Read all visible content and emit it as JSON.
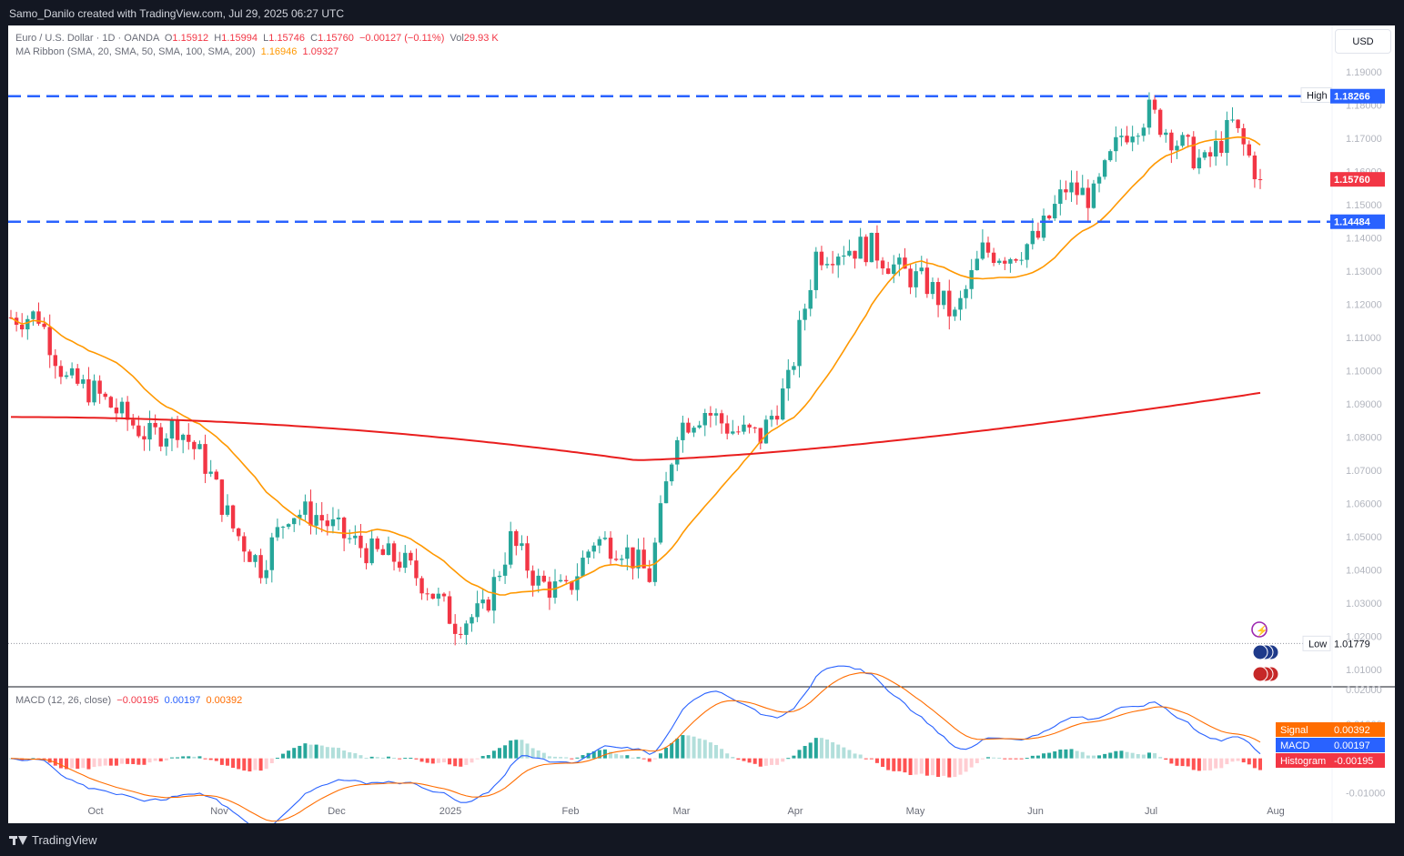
{
  "header": {
    "attribution": "Samo_Danilo created with TradingView.com, Jul 29, 2025 06:27 UTC"
  },
  "footer": {
    "brand": "TradingView"
  },
  "symbol": {
    "name": "Euro / U.S. Dollar · 1D · OANDA",
    "open_label": "O",
    "open": "1.15912",
    "high_label": "H",
    "high": "1.15994",
    "low_label": "L",
    "low": "1.15746",
    "close_label": "C",
    "close": "1.15760",
    "change": "−0.00127 (−0.11%)",
    "vol_label": "Vol",
    "vol": "29.93 K"
  },
  "ma_ribbon": {
    "name": "MA Ribbon (SMA, 20, SMA, 50, SMA, 100, SMA, 200)",
    "ma20": "1.16946",
    "ma200": "1.09327"
  },
  "currency_button": "USD",
  "price_scale": {
    "ticks": [
      "1.19000",
      "1.18000",
      "1.17000",
      "1.16000",
      "1.15000",
      "1.14000",
      "1.13000",
      "1.12000",
      "1.11000",
      "1.10000",
      "1.09000",
      "1.08000",
      "1.07000",
      "1.06000",
      "1.05000",
      "1.04000",
      "1.03000",
      "1.02000",
      "1.01000"
    ]
  },
  "markers": {
    "high_label": "High",
    "high_value": "1.18299",
    "low_label": "Low",
    "low_value": "1.01779",
    "level_upper": "1.18266",
    "level_lower": "1.14484",
    "last_price": "1.15760"
  },
  "macd": {
    "name": "MACD (12, 26, close)",
    "hist": "−0.00195",
    "macd": "0.00197",
    "signal": "0.00392",
    "ticks": [
      "0.02000",
      "0.01000",
      "0.00000",
      "-0.01000"
    ],
    "signal_label": "Signal",
    "macd_label": "MACD",
    "histogram_label": "Histogram",
    "histogram_value": "-0.00195"
  },
  "time_axis": [
    "Oct",
    "Nov",
    "Dec",
    "2025",
    "Feb",
    "Mar",
    "Apr",
    "May",
    "Jun",
    "Jul",
    "Aug"
  ],
  "colors": {
    "up": "#26a69a",
    "down": "#f23645",
    "ma20": "#ff9800",
    "ma200": "#e91e1e",
    "level": "#2962ff",
    "macd": "#2962ff",
    "signal": "#ff6d00"
  },
  "chart_data": {
    "type": "candlestick",
    "symbol": "EUR/USD",
    "timeframe": "1D",
    "x": [
      "2024-09-16",
      "2024-09-23",
      "2024-09-30",
      "2024-10-07",
      "2024-10-14",
      "2024-10-21",
      "2024-10-28",
      "2024-11-04",
      "2024-11-11",
      "2024-11-18",
      "2024-11-25",
      "2024-12-02",
      "2024-12-09",
      "2024-12-16",
      "2024-12-23",
      "2024-12-30",
      "2025-01-06",
      "2025-01-13",
      "2025-01-20",
      "2025-01-27",
      "2025-02-03",
      "2025-02-10",
      "2025-02-17",
      "2025-02-24",
      "2025-03-03",
      "2025-03-10",
      "2025-03-17",
      "2025-03-24",
      "2025-03-31",
      "2025-04-07",
      "2025-04-14",
      "2025-04-21",
      "2025-04-28",
      "2025-05-05",
      "2025-05-12",
      "2025-05-19",
      "2025-05-26",
      "2025-06-02",
      "2025-06-09",
      "2025-06-16",
      "2025-06-23",
      "2025-06-30",
      "2025-07-07",
      "2025-07-14",
      "2025-07-21",
      "2025-07-28"
    ],
    "close": [
      1.116,
      1.1165,
      1.097,
      1.0935,
      1.0865,
      1.08,
      1.0835,
      1.072,
      1.0525,
      1.041,
      1.0575,
      1.0565,
      1.05,
      1.045,
      1.043,
      1.035,
      1.024,
      1.027,
      1.049,
      1.036,
      1.033,
      1.049,
      1.047,
      1.038,
      1.083,
      1.088,
      1.082,
      1.08,
      1.096,
      1.135,
      1.137,
      1.137,
      1.13,
      1.126,
      1.116,
      1.136,
      1.135,
      1.14,
      1.155,
      1.152,
      1.171,
      1.178,
      1.169,
      1.162,
      1.174,
      1.1576
    ],
    "ma20_last": 1.16946,
    "ma200_last": 1.09327,
    "high": 1.18299,
    "low": 1.01779,
    "levels": [
      1.18266,
      1.14484
    ],
    "ylim": [
      1.005,
      1.193
    ],
    "macd_ylim": [
      -0.0125,
      0.0205
    ]
  }
}
